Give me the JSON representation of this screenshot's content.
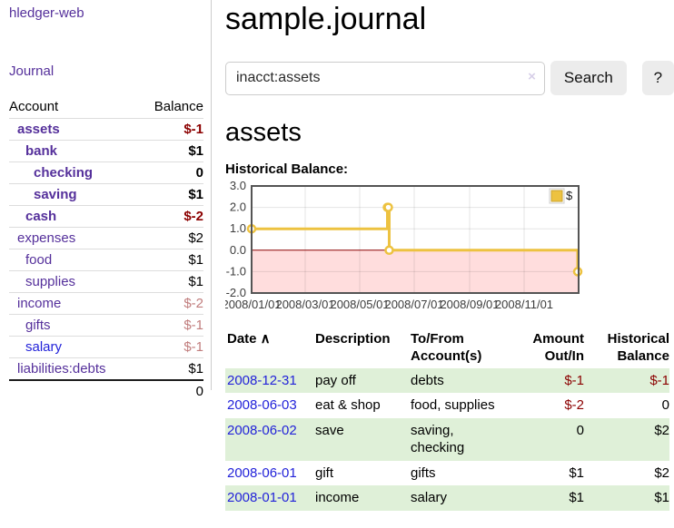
{
  "colors": {
    "purple_link": "#55309b",
    "blue_link": "#2323d9",
    "neg_strong": "#8b0000",
    "neg_soft": "#c17d7d",
    "stripe_green": "#dff0d8",
    "chart_gold": "#edc240",
    "chart_border": "#545454",
    "negative_region": "#ffdddd",
    "zero_line": "#8b0000"
  },
  "sidebar": {
    "brand": "hledger-web",
    "journal_link": "Journal",
    "accounts_table": {
      "col_account": "Account",
      "col_balance": "Balance",
      "rows": [
        {
          "name": "assets",
          "depth": 1,
          "bold": true,
          "balance": "$-1"
        },
        {
          "name": "bank",
          "depth": 2,
          "bold": true,
          "balance": "$1"
        },
        {
          "name": "checking",
          "depth": 3,
          "bold": true,
          "balance": "0"
        },
        {
          "name": "saving",
          "depth": 3,
          "bold": true,
          "balance": "$1"
        },
        {
          "name": "cash",
          "depth": 2,
          "bold": true,
          "balance": "$-2"
        },
        {
          "name": "expenses",
          "depth": 1,
          "bold": false,
          "balance": "$2"
        },
        {
          "name": "food",
          "depth": 2,
          "bold": false,
          "balance": "$1"
        },
        {
          "name": "supplies",
          "depth": 2,
          "bold": false,
          "balance": "$1"
        },
        {
          "name": "income",
          "depth": 1,
          "bold": false,
          "balance": "$-2"
        },
        {
          "name": "gifts",
          "depth": 2,
          "bold": false,
          "balance": "$-1"
        },
        {
          "name": "salary",
          "depth": 2,
          "bold": false,
          "balance": "$-1",
          "link_color": "#2323d9"
        },
        {
          "name": "liabilities:debts",
          "depth": 1,
          "bold": false,
          "balance": "$1"
        }
      ],
      "total": "0"
    }
  },
  "main": {
    "title": "sample.journal",
    "search": {
      "query": "inacct:assets",
      "clear_icon": "×",
      "button_label": "Search",
      "help_label": "?"
    },
    "account_heading": "assets",
    "chart_label": "Historical Balance:",
    "register": {
      "columns": [
        {
          "label": "Date",
          "sort_icon": "∧"
        },
        {
          "label": "Description"
        },
        {
          "label": "To/From\nAccount(s)"
        },
        {
          "label": "Amount\nOut/In",
          "align": "right"
        },
        {
          "label": "Historical\nBalance",
          "align": "right"
        }
      ],
      "rows": [
        {
          "date": "2008-12-31",
          "description": "pay off",
          "accounts": "debts",
          "amount": "$-1",
          "balance": "$-1"
        },
        {
          "date": "2008-06-03",
          "description": "eat & shop",
          "accounts": "food, supplies",
          "amount": "$-2",
          "balance": "0"
        },
        {
          "date": "2008-06-02",
          "description": "save",
          "accounts": "saving, checking",
          "amount": "0",
          "balance": "$2"
        },
        {
          "date": "2008-06-01",
          "description": "gift",
          "accounts": "gifts",
          "amount": "$1",
          "balance": "$2"
        },
        {
          "date": "2008-01-01",
          "description": "income",
          "accounts": "salary",
          "amount": "$1",
          "balance": "$1"
        }
      ]
    }
  },
  "chart_data": {
    "type": "line",
    "title": "Historical Balance",
    "steps": true,
    "series": [
      {
        "name": "$",
        "color": "#edc240",
        "points": [
          [
            "2008-01-01",
            1
          ],
          [
            "2008-06-01",
            2
          ],
          [
            "2008-06-02",
            2
          ],
          [
            "2008-06-03",
            0
          ],
          [
            "2008-12-31",
            -1
          ]
        ]
      }
    ],
    "x_tick_labels": [
      "2008/01/01",
      "2008/03/01",
      "2008/05/01",
      "2008/07/01",
      "2008/09/01",
      "2008/11/01"
    ],
    "y_tick_labels": [
      "3.0",
      "2.0",
      "1.0",
      "0.0",
      "-1.0",
      "-2.0"
    ],
    "xlim": [
      "2008-01-01",
      "2009-01-01"
    ],
    "ylim": [
      -2,
      3
    ],
    "grid": true,
    "legend_position": "top-right",
    "negative_region_color": "#ffdddd",
    "zero_line_color": "#8b0000"
  }
}
